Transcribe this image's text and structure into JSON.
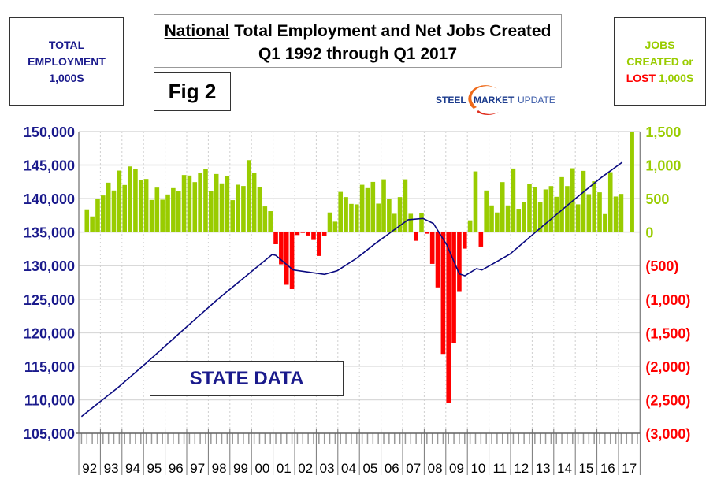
{
  "header": {
    "title_bold": "National",
    "title_rest": " Total Employment and Net Jobs Created",
    "subtitle": "Q1 1992 through Q1 2017",
    "fig": "Fig 2",
    "logo": {
      "word1": "STEEL",
      "word2": "MARKET",
      "word3": "UPDATE"
    },
    "left_label": [
      "TOTAL",
      "EMPLOYMENT",
      "1,000S"
    ],
    "right_label": {
      "line1": "JOBS",
      "line2": "CREATED or",
      "lost": "LOST",
      "units": "1,000S"
    },
    "annotation": "STATE DATA"
  },
  "colors": {
    "positive": "#99cc00",
    "negative": "#ff0000",
    "line": "#0a0a80",
    "axis_text": "#1a1a8c"
  },
  "chart_data": {
    "type": "bar+line",
    "title": "National Total Employment and Net Jobs Created, Q1 1992 through Q1 2017",
    "left_axis": {
      "label": "TOTAL EMPLOYMENT 1,000S",
      "range": [
        105000,
        150000
      ],
      "ticks": [
        "150,000",
        "145,000",
        "140,000",
        "135,000",
        "130,000",
        "125,000",
        "120,000",
        "115,000",
        "110,000",
        "105,000"
      ]
    },
    "right_axis": {
      "label": "JOBS CREATED or LOST 1,000S",
      "range": [
        -3000,
        1500
      ],
      "ticks": [
        "1,500",
        "1,000",
        "500",
        "0",
        "(500)",
        "(1,000)",
        "(1,500)",
        "(2,000)",
        "(2,500)",
        "(3,000)"
      ]
    },
    "x_ticks": [
      "92",
      "93",
      "94",
      "95",
      "96",
      "97",
      "98",
      "99",
      "00",
      "01",
      "02",
      "03",
      "04",
      "05",
      "06",
      "07",
      "08",
      "09",
      "10",
      "11",
      "12",
      "13",
      "14",
      "15",
      "16",
      "17"
    ],
    "grid": true,
    "series": [
      {
        "name": "Net jobs created (quarterly, 1,000s)",
        "type": "bar",
        "values": [
          340,
          234,
          500,
          547,
          738,
          621,
          918,
          703,
          980,
          945,
          781,
          793,
          480,
          664,
          484,
          562,
          656,
          609,
          852,
          844,
          746,
          883,
          941,
          613,
          867,
          727,
          836,
          477,
          707,
          688,
          1074,
          879,
          668,
          383,
          313,
          -180,
          -480,
          -785,
          -850,
          -43,
          -12,
          -50,
          -117,
          -355,
          -62,
          293,
          156,
          600,
          523,
          421,
          414,
          706,
          656,
          749,
          425,
          788,
          495,
          273,
          523,
          788,
          273,
          -129,
          281,
          -23,
          -473,
          -824,
          -1816,
          -2543,
          -1656,
          -891,
          -246,
          176,
          906,
          -215,
          621,
          398,
          293,
          746,
          398,
          949,
          348,
          453,
          715,
          676,
          453,
          637,
          687,
          527,
          820,
          687,
          953,
          414,
          914,
          566,
          758,
          594,
          269,
          894,
          531,
          570,
          null,
          1600
        ]
      },
      {
        "name": "Total employment (1,000s)",
        "type": "line",
        "points": [
          [
            1992.0,
            107500
          ],
          [
            1993.7,
            111850
          ],
          [
            1994.97,
            115400
          ],
          [
            1996.6,
            120100
          ],
          [
            1998.26,
            124840
          ],
          [
            2000.83,
            131660
          ],
          [
            2001.0,
            131540
          ],
          [
            2001.8,
            129370
          ],
          [
            2003.26,
            128700
          ],
          [
            2003.85,
            129250
          ],
          [
            2004.76,
            131140
          ],
          [
            2005.63,
            133350
          ],
          [
            2006.37,
            135080
          ],
          [
            2007.13,
            136850
          ],
          [
            2007.82,
            137040
          ],
          [
            2008.3,
            136300
          ],
          [
            2008.92,
            133100
          ],
          [
            2009.5,
            128780
          ],
          [
            2009.76,
            128500
          ],
          [
            2010.3,
            129560
          ],
          [
            2010.55,
            129360
          ],
          [
            2011.85,
            131730
          ],
          [
            2013.06,
            135080
          ],
          [
            2014.88,
            140000
          ],
          [
            2016.08,
            143150
          ],
          [
            2017.05,
            145430
          ]
        ]
      }
    ]
  }
}
